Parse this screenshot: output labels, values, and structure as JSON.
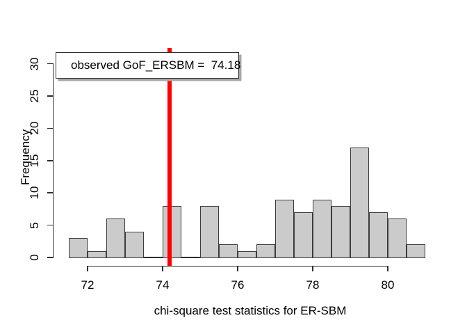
{
  "chart_data": {
    "type": "bar",
    "subtype": "histogram",
    "title": "",
    "xlabel": "chi-square test statistics for ER-SBM",
    "ylabel": "Frequency",
    "bin_start": 71.5,
    "bin_width": 0.5,
    "counts": [
      3,
      1,
      6,
      4,
      0,
      8,
      0,
      8,
      2,
      1,
      2,
      9,
      7,
      9,
      8,
      17,
      7,
      6,
      2
    ],
    "x_ticks": [
      72,
      74,
      76,
      78,
      80
    ],
    "y_ticks": [
      0,
      5,
      10,
      15,
      20,
      25,
      30
    ],
    "xlim": [
      71.5,
      81
    ],
    "ylim": [
      0,
      30
    ],
    "grid": false,
    "legend_position": "top-left",
    "observed_value": 74.18,
    "annotation": {
      "legend_text": "observed GoF_ERSBM =  74.18"
    }
  },
  "colors": {
    "background": "#ffffff",
    "bar_fill": "#cbcbcb",
    "bar_border": "#3c3c3c",
    "axis": "#2e2e2e",
    "text": "#000000",
    "observed_line": "#ff0000",
    "legend_border": "#2e2e2e",
    "legend_shadow": "#a8a8a8"
  }
}
